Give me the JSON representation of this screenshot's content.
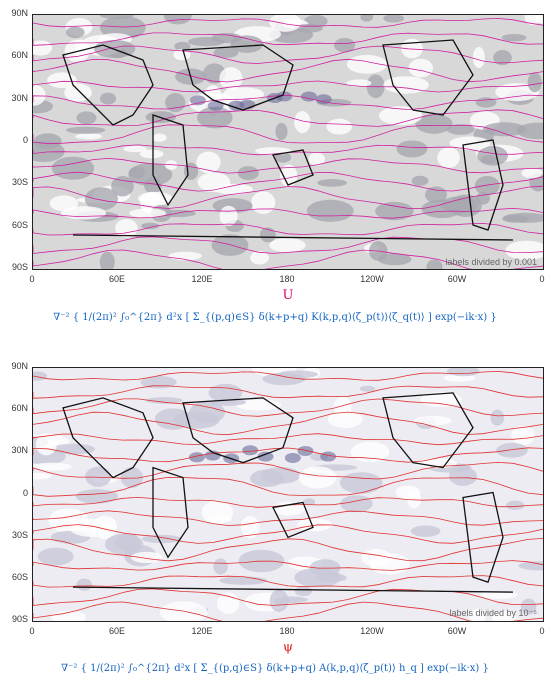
{
  "panels": [
    {
      "lat_labels": [
        "90N",
        "60N",
        "30N",
        "0",
        "30S",
        "60S",
        "90S"
      ],
      "lon_labels": [
        "0",
        "60E",
        "120E",
        "180",
        "120W",
        "60W",
        "0"
      ],
      "variable": "U",
      "variable_color": "#e0006a",
      "contour_color": "#d020a0",
      "note": "labels divided by 0.001",
      "formula": "∇⁻² { 1/(2π)² ∫₀^{2π} d²x [ Σ_{(p,q)∈S} δ(k+p+q) K(k,p,q)⟨ζ_p(t)⟩⟨ζ_q(t)⟩ ] exp(−ik·x) }"
    },
    {
      "lat_labels": [
        "90N",
        "60N",
        "30N",
        "0",
        "30S",
        "60S",
        "90S"
      ],
      "lon_labels": [
        "0",
        "60E",
        "120E",
        "180",
        "120W",
        "60W",
        "0"
      ],
      "variable": "ψ",
      "variable_color": "#e02020",
      "contour_color": "#e03030",
      "note": "labels divided by 10⁻⁵",
      "formula": "∇⁻² { 1/(2π)² ∫₀^{2π} d²x [ Σ_{(p,q)∈S} δ(k+p+q) A(k,p,q)⟨ζ_p(t)⟩ h_q ] exp(−ik·x) }"
    }
  ]
}
